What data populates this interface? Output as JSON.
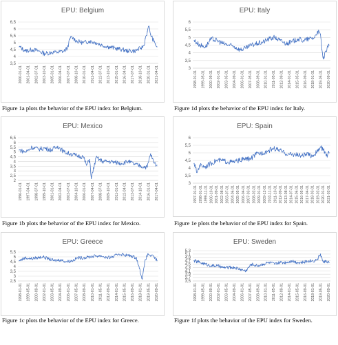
{
  "charts": [
    {
      "id": "belgium",
      "title": "EPU: Belgium",
      "yticks": [
        "3,5",
        "4",
        "4,5",
        "5",
        "5,5",
        "6",
        "6,5"
      ],
      "xticks": [
        "2000-01-01",
        "2001-04-01",
        "2002-07-01",
        "2003-10-01",
        "2005-01-01",
        "2006-04-01",
        "2007-07-01",
        "2008-10-01",
        "2010-01-01",
        "2011-04-01",
        "2012-07-01",
        "2013-10-01",
        "2015-01-01",
        "2016-04-01",
        "2017-07-01",
        "2018-10-01",
        "2020-01-01",
        "2021-04-01"
      ],
      "caption": "Figure 1a plots the behavior of the EPU index for Belgium."
    },
    {
      "id": "mexico",
      "title": "EPU: Mexico",
      "yticks": [
        "2",
        "2,5",
        "3",
        "3,5",
        "4",
        "4,5",
        "5",
        "5,5",
        "6",
        "6,5"
      ],
      "xticks": [
        "1996-01-01",
        "1997-04-01",
        "1998-07-01",
        "1999-10-01",
        "2001-01-01",
        "2002-04-01",
        "2003-07-01",
        "2004-10-01",
        "2006-01-01",
        "2007-04-01",
        "2008-07-01",
        "2009-10-01",
        "2011-01-01",
        "2012-04-01",
        "2013-07-01",
        "2014-10-01",
        "2016-01-01",
        "2017-04-01"
      ],
      "caption": "Figure 1b plots the behavior of the EPU index for Mexico."
    },
    {
      "id": "greece",
      "title": "EPU: Greece",
      "yticks": [
        "2,5",
        "3",
        "3,5",
        "4",
        "4,5",
        "5",
        "5,5"
      ],
      "xticks": [
        "1998-01-01",
        "1999-05-01",
        "2000-09-01",
        "2002-01-01",
        "2003-05-01",
        "2004-09-01",
        "2006-01-01",
        "2007-05-01",
        "2008-09-01",
        "2010-01-01",
        "2011-05-01",
        "2012-09-01",
        "2014-01-01",
        "2015-05-01",
        "2016-09-01",
        "2018-01-01",
        "2019-05-01",
        "2020-09-01"
      ],
      "caption": "Figure 1c plots the behavior of the EPU index for Greece."
    },
    {
      "id": "italy",
      "title": "EPU: Italy",
      "yticks": [
        "3",
        "3,5",
        "4",
        "4,5",
        "5",
        "5,5",
        "6"
      ],
      "xticks": [
        "1998-01-01",
        "1999-05-01",
        "2000-09-01",
        "2002-01-01",
        "2003-05-01",
        "2004-09-01",
        "2006-01-01",
        "2007-05-01",
        "2008-09-01",
        "2010-01-01",
        "2011-05-01",
        "2012-09-01",
        "2014-01-01",
        "2015-05-01",
        "2016-09-01",
        "2018-01-01",
        "2019-05-01",
        "2020-09-01"
      ],
      "caption": "Figure 1d plots the behavior of the EPU index for Italy."
    },
    {
      "id": "spain",
      "title": "EPU: Spain",
      "yticks": [
        "3",
        "3,5",
        "4",
        "4,5",
        "5",
        "5,5",
        "6"
      ],
      "xticks": [
        "1997-01-01",
        "1998-01-01",
        "1999-11-01",
        "2000-10-01",
        "2001-09-01",
        "2002-08-01",
        "2003-07-01",
        "2004-06-01",
        "2005-05-01",
        "2006-04-01",
        "2007-03-01",
        "2008-02-01",
        "2009-01-01",
        "2009-12-01",
        "2010-11-01",
        "2011-10-01",
        "2012-09-01",
        "2013-08-01",
        "2014-07-01",
        "2015-06-01",
        "2016-05-01",
        "2017-04-01",
        "2018-03-01",
        "2019-02-01",
        "2020-01-01",
        "2021-02-01"
      ],
      "caption": "Figure 1e plots the behavior of the EPU index for Spain."
    },
    {
      "id": "sweden",
      "title": "EPU: Sweden",
      "yticks": [
        "3,5",
        "3,7",
        "3,9",
        "4,1",
        "4,3",
        "4,5",
        "4,7",
        "4,9",
        "5,1",
        "5,3"
      ],
      "xticks": [
        "1998-01-01",
        "1999-05-01",
        "2000-09-01",
        "2002-01-01",
        "2003-05-01",
        "2004-09-01",
        "2006-01-01",
        "2007-05-01",
        "2008-09-01",
        "2010-01-01",
        "2011-05-01",
        "2012-09-01",
        "2014-01-01",
        "2015-05-01",
        "2016-09-01",
        "2018-01-01",
        "2019-05-01",
        "2020-09-01"
      ],
      "caption": "Figure 1f plots the behavior of the EPU index for Sweden."
    }
  ],
  "chart_data": [
    {
      "type": "line",
      "title": "EPU: Belgium",
      "ylim": [
        3.5,
        6.5
      ],
      "x": [
        "2000-01",
        "2001-01",
        "2002-01",
        "2003-01",
        "2004-01",
        "2005-01",
        "2006-01",
        "2007-01",
        "2007-07",
        "2008-01",
        "2008-07",
        "2009-01",
        "2010-01",
        "2011-01",
        "2012-01",
        "2013-01",
        "2014-01",
        "2015-01",
        "2016-01",
        "2017-01",
        "2018-01",
        "2019-01",
        "2019-07",
        "2019-09",
        "2020-01",
        "2020-04",
        "2020-07",
        "2021-01",
        "2021-04",
        "2021-07"
      ],
      "series": [
        {
          "values": [
            4.7,
            4.4,
            4.5,
            4.4,
            4.2,
            4.3,
            4.3,
            4.4,
            4.6,
            5.4,
            5.3,
            5.1,
            5.0,
            5.1,
            5.0,
            4.8,
            4.7,
            4.6,
            4.5,
            4.4,
            4.4,
            4.6,
            4.8,
            5.3,
            5.8,
            6.2,
            5.6,
            5.1,
            4.9,
            4.7
          ]
        }
      ]
    },
    {
      "type": "line",
      "title": "EPU: Mexico",
      "ylim": [
        2,
        6.5
      ],
      "x": [
        "1996-01",
        "1997-01",
        "1998-01",
        "1999-01",
        "2000-01",
        "2001-01",
        "2002-01",
        "2003-01",
        "2004-01",
        "2005-01",
        "2006-01",
        "2006-07",
        "2007-01",
        "2007-04",
        "2008-01",
        "2009-01",
        "2010-01",
        "2011-01",
        "2012-01",
        "2013-01",
        "2014-01",
        "2015-01",
        "2016-01",
        "2016-07",
        "2017-01",
        "2017-07"
      ],
      "series": [
        {
          "values": [
            5.2,
            5.0,
            5.5,
            5.3,
            5.4,
            5.2,
            5.6,
            5.0,
            4.8,
            4.6,
            4.5,
            3.6,
            4.2,
            2.2,
            4.4,
            4.0,
            4.0,
            3.9,
            3.8,
            4.0,
            3.7,
            3.5,
            3.4,
            4.8,
            3.9,
            3.6
          ]
        }
      ]
    },
    {
      "type": "line",
      "title": "EPU: Greece",
      "ylim": [
        2.5,
        5.5
      ],
      "x": [
        "1998-01",
        "1999-01",
        "2000-01",
        "2001-01",
        "2002-01",
        "2003-01",
        "2004-01",
        "2005-01",
        "2006-01",
        "2007-01",
        "2008-01",
        "2009-01",
        "2010-01",
        "2011-01",
        "2012-01",
        "2013-01",
        "2014-01",
        "2015-01",
        "2016-01",
        "2017-01",
        "2018-01",
        "2018-07",
        "2019-01",
        "2019-07",
        "2020-01",
        "2020-07",
        "2021-01",
        "2021-07"
      ],
      "series": [
        {
          "values": [
            4.6,
            4.9,
            4.8,
            4.9,
            5.0,
            4.8,
            4.6,
            4.7,
            4.5,
            4.6,
            4.9,
            4.9,
            5.0,
            5.1,
            5.1,
            4.9,
            5.0,
            5.3,
            5.2,
            5.1,
            4.9,
            3.8,
            2.7,
            4.7,
            5.3,
            5.1,
            5.0,
            4.6
          ]
        }
      ]
    },
    {
      "type": "line",
      "title": "EPU: Italy",
      "ylim": [
        3,
        6
      ],
      "x": [
        "1998-01",
        "1999-01",
        "2000-01",
        "2001-01",
        "2002-01",
        "2003-01",
        "2004-01",
        "2005-01",
        "2006-01",
        "2007-01",
        "2008-01",
        "2009-01",
        "2010-01",
        "2011-01",
        "2012-01",
        "2013-01",
        "2014-01",
        "2015-01",
        "2016-01",
        "2017-01",
        "2018-01",
        "2019-01",
        "2019-07",
        "2020-01",
        "2020-04",
        "2020-07",
        "2021-01",
        "2021-07"
      ],
      "series": [
        {
          "values": [
            4.8,
            4.5,
            4.4,
            4.9,
            4.8,
            4.6,
            4.5,
            4.4,
            4.2,
            4.3,
            4.5,
            4.6,
            4.7,
            4.9,
            5.0,
            4.8,
            4.6,
            4.7,
            4.9,
            4.8,
            4.9,
            5.0,
            5.4,
            5.2,
            4.2,
            3.6,
            4.1,
            4.5
          ]
        }
      ]
    },
    {
      "type": "line",
      "title": "EPU: Spain",
      "ylim": [
        3,
        6
      ],
      "x": [
        "1997-01",
        "1997-07",
        "1998-01",
        "1999-01",
        "2000-01",
        "2001-01",
        "2002-01",
        "2003-01",
        "2004-01",
        "2005-01",
        "2006-01",
        "2007-01",
        "2008-01",
        "2009-01",
        "2010-01",
        "2011-01",
        "2012-01",
        "2013-01",
        "2014-01",
        "2015-01",
        "2016-01",
        "2017-01",
        "2018-01",
        "2019-01",
        "2019-07",
        "2020-01",
        "2020-07",
        "2021-01"
      ],
      "series": [
        {
          "values": [
            4.3,
            3.7,
            4.2,
            4.1,
            4.3,
            4.5,
            4.5,
            4.4,
            4.4,
            4.5,
            4.6,
            4.6,
            4.9,
            5.0,
            5.1,
            5.3,
            5.2,
            5.0,
            4.9,
            4.9,
            4.8,
            4.9,
            4.8,
            5.1,
            5.4,
            5.2,
            4.8,
            5.0
          ]
        }
      ]
    },
    {
      "type": "line",
      "title": "EPU: Sweden",
      "ylim": [
        3.5,
        5.3
      ],
      "x": [
        "1998-01",
        "1999-01",
        "2000-01",
        "2001-01",
        "2002-01",
        "2003-01",
        "2004-01",
        "2005-01",
        "2006-01",
        "2007-01",
        "2008-01",
        "2009-01",
        "2010-01",
        "2011-01",
        "2012-01",
        "2013-01",
        "2014-01",
        "2015-01",
        "2016-01",
        "2017-01",
        "2018-01",
        "2019-01",
        "2019-07",
        "2020-01",
        "2020-07",
        "2021-01",
        "2021-07"
      ],
      "series": [
        {
          "values": [
            4.7,
            4.6,
            4.5,
            4.4,
            4.4,
            4.3,
            4.3,
            4.3,
            4.2,
            4.1,
            4.5,
            4.4,
            4.5,
            4.6,
            4.5,
            4.6,
            4.6,
            4.7,
            4.6,
            4.6,
            4.7,
            4.7,
            4.8,
            5.1,
            4.6,
            4.7,
            4.6
          ]
        }
      ]
    }
  ],
  "style": {
    "line_color": "#4472c4",
    "grid_color": "#d9d9d9",
    "axis_text_color": "#595959"
  }
}
